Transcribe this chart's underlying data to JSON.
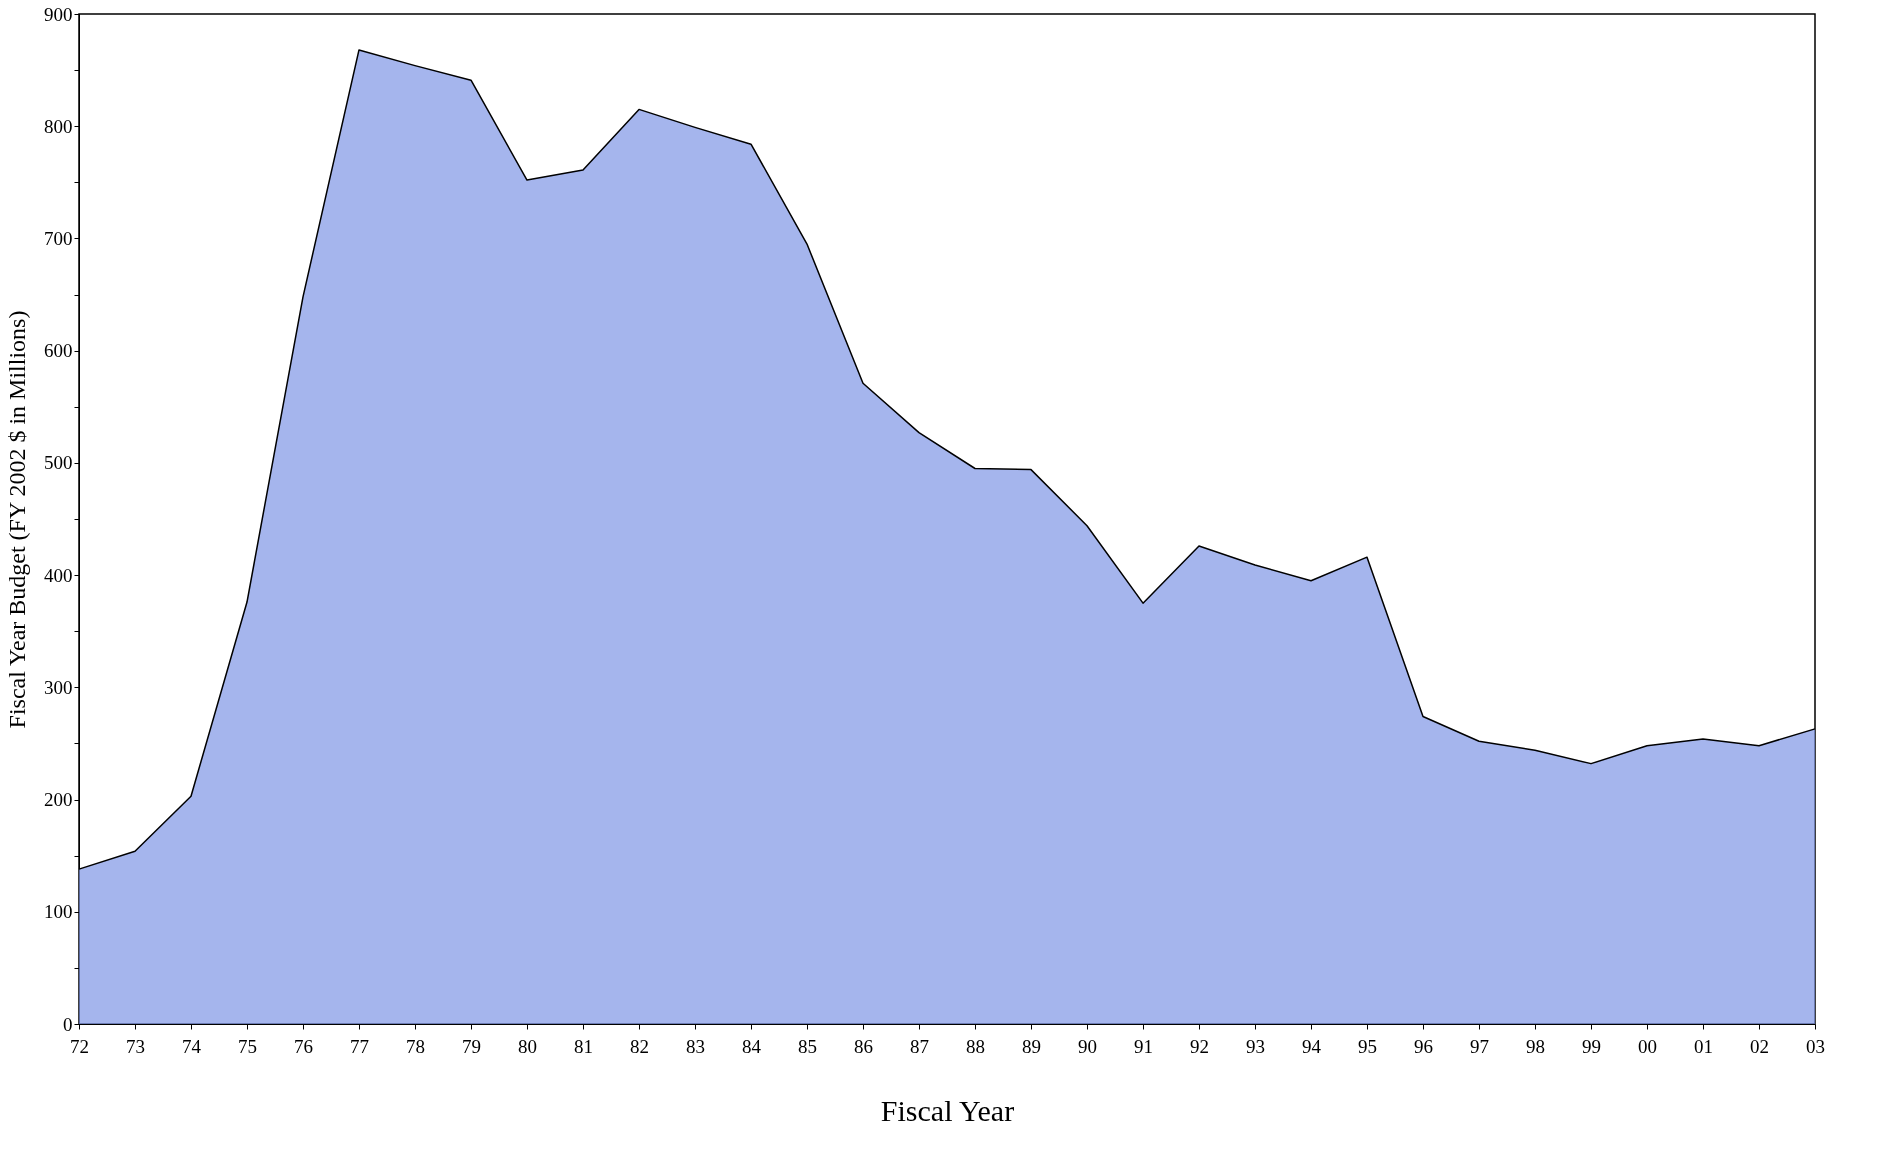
{
  "chart_data": {
    "type": "area",
    "xlabel": "Fiscal Year",
    "ylabel": "Fiscal Year Budget (FY 2002 $ in Millions)",
    "categories": [
      "72",
      "73",
      "74",
      "75",
      "76",
      "77",
      "78",
      "79",
      "80",
      "81",
      "82",
      "83",
      "84",
      "85",
      "86",
      "87",
      "88",
      "89",
      "90",
      "91",
      "92",
      "93",
      "94",
      "95",
      "96",
      "97",
      "98",
      "99",
      "00",
      "01",
      "02",
      "03"
    ],
    "series": [
      {
        "color": "#7f95e6",
        "values": [
          138,
          154,
          203,
          376,
          648,
          868,
          854,
          841,
          752,
          761,
          815,
          799,
          784,
          695,
          571,
          527,
          495,
          494,
          444,
          375,
          426,
          409,
          395,
          416,
          274,
          252,
          244,
          232,
          248,
          254,
          248,
          263
        ]
      }
    ],
    "ylim": [
      0,
      900
    ],
    "yticks": [
      0,
      {
        "value": 50,
        "label": null
      },
      100,
      {
        "value": 150,
        "label": null
      },
      200,
      {
        "value": 250,
        "label": null
      },
      300,
      {
        "value": 350,
        "label": null
      },
      400,
      {
        "value": 450,
        "label": null
      },
      500,
      {
        "value": 550,
        "label": null
      },
      600,
      {
        "value": 650,
        "label": null
      },
      700,
      {
        "value": 750,
        "label": null
      },
      800,
      {
        "value": 850,
        "label": null
      },
      900
    ],
    "grid": false
  }
}
